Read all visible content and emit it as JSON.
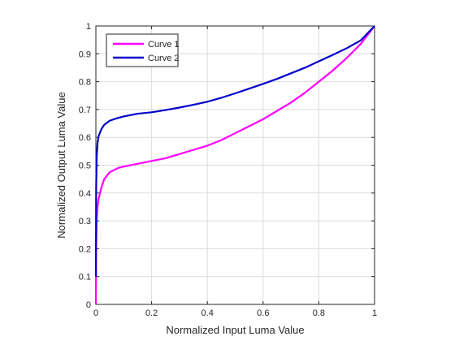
{
  "chart_data": {
    "type": "line",
    "title": "",
    "xlabel": "Normalized Input Luma Value",
    "ylabel": "Normalized Output Luma Value",
    "xlim": [
      0,
      1
    ],
    "ylim": [
      0,
      1
    ],
    "xticks": [
      0,
      0.2,
      0.4,
      0.6,
      0.8,
      1
    ],
    "xtick_labels": [
      "0",
      "0.2",
      "0.4",
      "0.6",
      "0.8",
      "1"
    ],
    "yticks": [
      0,
      0.1,
      0.2,
      0.3,
      0.4,
      0.5,
      0.6,
      0.7,
      0.8,
      0.9,
      1
    ],
    "ytick_labels": [
      "0",
      "0.1",
      "0.2",
      "0.3",
      "0.4",
      "0.5",
      "0.6",
      "0.7",
      "0.8",
      "0.9",
      "1"
    ],
    "grid": true,
    "legend_position": "top-left",
    "series": [
      {
        "name": "Curve 1",
        "color": "#ff00ff",
        "x": [
          0,
          0.001,
          0.003,
          0.006,
          0.01,
          0.02,
          0.03,
          0.05,
          0.08,
          0.1,
          0.15,
          0.2,
          0.25,
          0.3,
          0.35,
          0.4,
          0.45,
          0.5,
          0.55,
          0.6,
          0.65,
          0.7,
          0.75,
          0.8,
          0.85,
          0.9,
          0.95,
          1.0
        ],
        "y": [
          0,
          0.2,
          0.3,
          0.35,
          0.38,
          0.42,
          0.45,
          0.475,
          0.49,
          0.495,
          0.505,
          0.515,
          0.525,
          0.54,
          0.555,
          0.57,
          0.59,
          0.615,
          0.64,
          0.665,
          0.695,
          0.725,
          0.76,
          0.8,
          0.84,
          0.885,
          0.935,
          1.0
        ]
      },
      {
        "name": "Curve 2",
        "color": "#0000cc",
        "x": [
          0,
          0.001,
          0.003,
          0.006,
          0.01,
          0.02,
          0.03,
          0.05,
          0.08,
          0.1,
          0.15,
          0.2,
          0.25,
          0.3,
          0.35,
          0.4,
          0.45,
          0.5,
          0.55,
          0.6,
          0.65,
          0.7,
          0.75,
          0.8,
          0.85,
          0.9,
          0.95,
          1.0
        ],
        "y": [
          0.1,
          0.42,
          0.53,
          0.58,
          0.605,
          0.63,
          0.645,
          0.66,
          0.67,
          0.675,
          0.685,
          0.69,
          0.698,
          0.707,
          0.717,
          0.728,
          0.742,
          0.758,
          0.775,
          0.792,
          0.81,
          0.83,
          0.85,
          0.873,
          0.896,
          0.92,
          0.948,
          1.0
        ]
      }
    ]
  }
}
